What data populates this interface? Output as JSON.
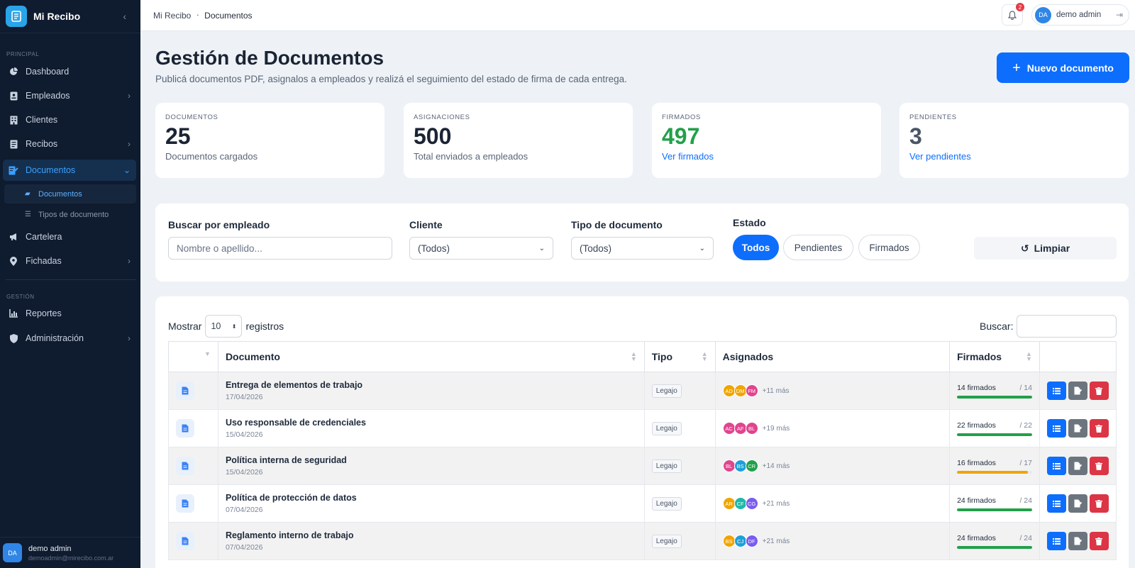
{
  "sidebar": {
    "brand": "Mi Recibo",
    "section_principal": "PRINCIPAL",
    "section_gestion": "GESTIÓN",
    "items": {
      "dashboard": "Dashboard",
      "empleados": "Empleados",
      "clientes": "Clientes",
      "recibos": "Recibos",
      "documentos": "Documentos",
      "sub_documentos": "Documentos",
      "sub_tipos": "Tipos de documento",
      "cartelera": "Cartelera",
      "fichadas": "Fichadas",
      "reportes": "Reportes",
      "administracion": "Administración"
    },
    "user": {
      "initials": "DA",
      "name": "demo admin",
      "email": "demoadmin@mirecibo.com.ar"
    }
  },
  "topbar": {
    "breadcrumb_root": "Mi Recibo",
    "breadcrumb_current": "Documentos",
    "notification_count": "2",
    "user_initials": "DA",
    "user_name": "demo admin"
  },
  "header": {
    "title": "Gestión de Documentos",
    "subtitle": "Publicá documentos PDF, asignalos a empleados y realizá el seguimiento del estado de firma de cada entrega.",
    "new_button": "Nuevo documento"
  },
  "stats": [
    {
      "label": "DOCUMENTOS",
      "value": "25",
      "desc": "Documentos cargados"
    },
    {
      "label": "ASIGNACIONES",
      "value": "500",
      "desc": "Total enviados a empleados"
    },
    {
      "label": "FIRMADOS",
      "value": "497",
      "desc": "Ver firmados"
    },
    {
      "label": "PENDIENTES",
      "value": "3",
      "desc": "Ver pendientes"
    }
  ],
  "filters": {
    "search_label": "Buscar por empleado",
    "search_placeholder": "Nombre o apellido...",
    "cliente_label": "Cliente",
    "cliente_value": "(Todos)",
    "tipo_label": "Tipo de documento",
    "tipo_value": "(Todos)",
    "estado_label": "Estado",
    "estado_options": [
      "Todos",
      "Pendientes",
      "Firmados"
    ],
    "estado_selected": "Todos",
    "clear_button": "Limpiar"
  },
  "table": {
    "show_label": "Mostrar",
    "page_length": "10",
    "records_label": "registros",
    "search_label": "Buscar:",
    "columns": [
      "",
      "Documento",
      "Tipo",
      "Asignados",
      "Firmados",
      ""
    ],
    "rows": [
      {
        "name": "Entrega de elementos de trabajo",
        "date": "17/04/2026",
        "tipo": "Legajo",
        "avatars": [
          [
            "AD",
            "#f0a500"
          ],
          [
            "DM",
            "#f0a500"
          ],
          [
            "FM",
            "#e0458e"
          ]
        ],
        "more": "+11 más",
        "firmados": "14 firmados",
        "total": "/ 14",
        "progress": 1.0,
        "bar_color": "#22a04a"
      },
      {
        "name": "Uso responsable de credenciales",
        "date": "15/04/2026",
        "tipo": "Legajo",
        "avatars": [
          [
            "AC",
            "#e0458e"
          ],
          [
            "AF",
            "#e0458e"
          ],
          [
            "BL",
            "#e0458e"
          ]
        ],
        "more": "+19 más",
        "firmados": "22 firmados",
        "total": "/ 22",
        "progress": 1.0,
        "bar_color": "#22a04a"
      },
      {
        "name": "Política interna de seguridad",
        "date": "15/04/2026",
        "tipo": "Legajo",
        "avatars": [
          [
            "BL",
            "#e0458e"
          ],
          [
            "BS",
            "#1ea0d8"
          ],
          [
            "CR",
            "#22a04a"
          ]
        ],
        "more": "+14 más",
        "firmados": "16 firmados",
        "total": "/ 17",
        "progress": 0.94,
        "bar_color": "#f0a500"
      },
      {
        "name": "Política de protección de datos",
        "date": "07/04/2026",
        "tipo": "Legajo",
        "avatars": [
          [
            "AR",
            "#f0a500"
          ],
          [
            "CF",
            "#1fb8a8"
          ],
          [
            "CG",
            "#7a5cf0"
          ]
        ],
        "more": "+21 más",
        "firmados": "24 firmados",
        "total": "/ 24",
        "progress": 1.0,
        "bar_color": "#22a04a"
      },
      {
        "name": "Reglamento interno de trabajo",
        "date": "07/04/2026",
        "tipo": "Legajo",
        "avatars": [
          [
            "BS",
            "#f0a500"
          ],
          [
            "CJ",
            "#1ea0d8"
          ],
          [
            "DF",
            "#7a5cf0"
          ]
        ],
        "more": "+21 más",
        "firmados": "24 firmados",
        "total": "/ 24",
        "progress": 1.0,
        "bar_color": "#22a04a"
      }
    ]
  }
}
